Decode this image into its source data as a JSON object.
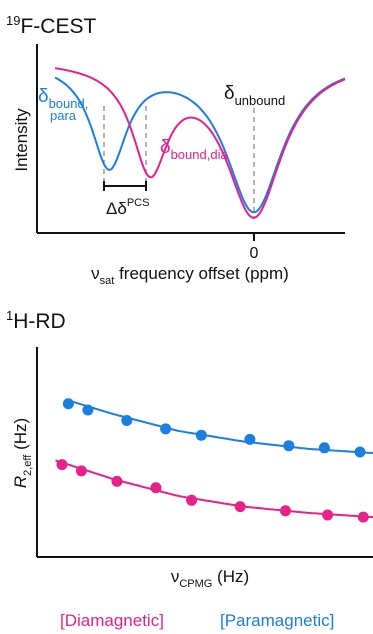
{
  "colors": {
    "blue": "#1a7fe0",
    "pink": "#e8208a",
    "axis": "#111111",
    "guide": "#888888"
  },
  "chart_data": [
    {
      "type": "line",
      "panel_title": {
        "sup": "19",
        "main": "F-CEST"
      },
      "ylabel": "Intensity",
      "xlabel": {
        "prefix": "ν",
        "sub": "sat",
        "rest": " frequency offset (ppm)"
      },
      "xticks": [
        "0"
      ],
      "x_axis_note": "offset direction: negative values to the left of 0",
      "xlim": [
        -3.4,
        0.9
      ],
      "ylim": [
        0,
        1.05
      ],
      "series": [
        {
          "name": "bound,para",
          "color": "#1a7fe0",
          "dips": [
            {
              "center": -2.3,
              "depth": 0.62
            },
            {
              "center": 0.0,
              "depth": 0.91
            }
          ]
        },
        {
          "name": "bound,dia",
          "color": "#e8208a",
          "dips": [
            {
              "center": -1.65,
              "depth": 0.62
            },
            {
              "center": 0.0,
              "depth": 0.93
            }
          ]
        }
      ],
      "annotations": {
        "bound_para": {
          "main": "δ",
          "sub1": "bound,",
          "sub2": "para"
        },
        "bound_dia": {
          "main": "δ",
          "sub": "bound,dia"
        },
        "unbound": {
          "main": "δ",
          "sub": "unbound"
        },
        "pcs": {
          "main": "Δδ",
          "sup": "PCS"
        }
      }
    },
    {
      "type": "scatter",
      "panel_title": {
        "sup": "1",
        "main": "H-RD"
      },
      "ylabel": {
        "main": "R",
        "sub": "2,eff",
        "rest": " (Hz)"
      },
      "xlabel": {
        "main": "ν",
        "sub": "CPMG",
        "rest": " (Hz)"
      },
      "xlim": [
        0,
        10
      ],
      "ylim": [
        0,
        10
      ],
      "series": [
        {
          "name": "Paramagnetic",
          "color": "#1a7fe0",
          "points": [
            [
              0.6,
              7.3
            ],
            [
              1.2,
              7.0
            ],
            [
              2.4,
              6.5
            ],
            [
              3.6,
              6.1
            ],
            [
              4.7,
              5.8
            ],
            [
              6.2,
              5.6
            ],
            [
              7.4,
              5.3
            ],
            [
              8.5,
              5.2
            ],
            [
              9.6,
              5.0
            ]
          ],
          "fit": [
            [
              0.5,
              7.5
            ],
            [
              2,
              6.8
            ],
            [
              4,
              6.0
            ],
            [
              6,
              5.5
            ],
            [
              8,
              5.15
            ],
            [
              10,
              4.95
            ]
          ]
        },
        {
          "name": "Diamagnetic",
          "color": "#e8208a",
          "points": [
            [
              0.4,
              4.4
            ],
            [
              1.0,
              4.1
            ],
            [
              2.1,
              3.6
            ],
            [
              3.3,
              3.3
            ],
            [
              4.4,
              2.7
            ],
            [
              5.9,
              2.4
            ],
            [
              7.3,
              2.2
            ],
            [
              8.6,
              2.0
            ],
            [
              9.7,
              1.9
            ]
          ],
          "fit": [
            [
              0.2,
              4.6
            ],
            [
              2,
              3.7
            ],
            [
              4,
              2.9
            ],
            [
              6,
              2.4
            ],
            [
              8,
              2.1
            ],
            [
              10,
              1.9
            ]
          ]
        }
      ],
      "legend": [
        "[Diamagnetic]",
        "[Paramagnetic]"
      ],
      "legend_placement": "bottom"
    }
  ]
}
